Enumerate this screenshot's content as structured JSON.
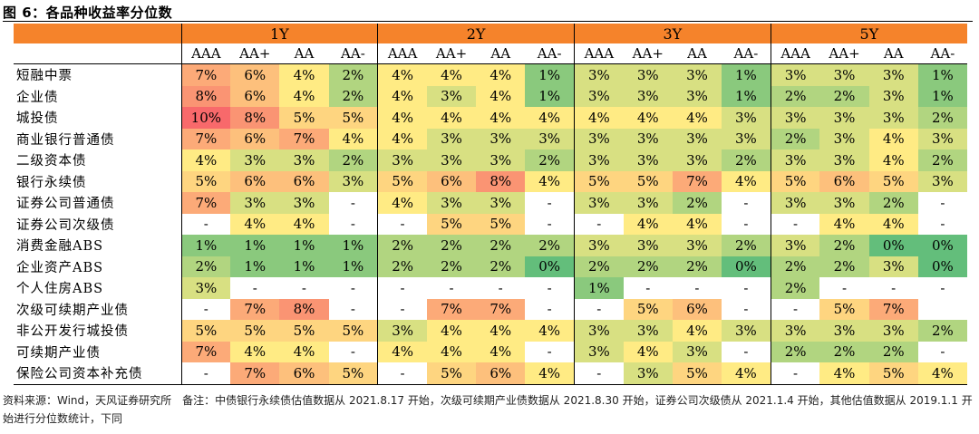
{
  "figure": {
    "title": "图 6：各品种收益率分位数",
    "note": "资料来源：Wind，天风证券研究所　备注：中债银行永续债估值数据从 2021.8.17 开始，次级可续期产业债数据从 2021.8.30 开始，证券公司次级债从 2021.1.4 开始，其他估值数据从 2019.1.1 开始进行分位数统计，下同"
  },
  "chart_data": {
    "type": "heatmap",
    "title": "各品种收益率分位数",
    "tenors": [
      "1Y",
      "2Y",
      "3Y",
      "5Y"
    ],
    "ratings": [
      "AAA",
      "AA+",
      "AA",
      "AA-"
    ],
    "units": "percent",
    "color_scale": {
      "low": "#63be7b",
      "mid": "#ffeb84",
      "high": "#f8696b",
      "missing": "#ffffff"
    },
    "rows": [
      {
        "name": "短融中票",
        "values": [
          7,
          6,
          4,
          2,
          4,
          4,
          4,
          1,
          3,
          3,
          3,
          1,
          3,
          3,
          3,
          1
        ]
      },
      {
        "name": "企业债",
        "values": [
          8,
          6,
          4,
          2,
          4,
          3,
          4,
          1,
          3,
          3,
          3,
          1,
          2,
          2,
          3,
          1
        ]
      },
      {
        "name": "城投债",
        "values": [
          10,
          8,
          5,
          5,
          4,
          4,
          4,
          4,
          4,
          4,
          4,
          3,
          3,
          3,
          3,
          2
        ]
      },
      {
        "name": "商业银行普通债",
        "values": [
          7,
          6,
          7,
          4,
          4,
          3,
          3,
          3,
          3,
          3,
          3,
          3,
          2,
          3,
          4,
          3
        ]
      },
      {
        "name": "二级资本债",
        "values": [
          4,
          3,
          3,
          2,
          3,
          3,
          3,
          2,
          3,
          3,
          3,
          2,
          3,
          3,
          4,
          2
        ]
      },
      {
        "name": "银行永续债",
        "values": [
          5,
          6,
          6,
          3,
          5,
          6,
          8,
          4,
          5,
          5,
          7,
          4,
          5,
          6,
          5,
          3
        ]
      },
      {
        "name": "证券公司普通债",
        "values": [
          7,
          3,
          3,
          null,
          4,
          3,
          3,
          null,
          3,
          3,
          2,
          null,
          3,
          3,
          2,
          null
        ]
      },
      {
        "name": "证券公司次级债",
        "values": [
          null,
          4,
          4,
          null,
          null,
          5,
          5,
          null,
          null,
          4,
          4,
          null,
          null,
          4,
          4,
          null
        ]
      },
      {
        "name": "消费金融ABS",
        "values": [
          1,
          1,
          1,
          1,
          2,
          2,
          2,
          2,
          3,
          3,
          3,
          2,
          3,
          2,
          0,
          0
        ]
      },
      {
        "name": "企业资产ABS",
        "values": [
          2,
          1,
          1,
          1,
          2,
          2,
          2,
          0,
          2,
          2,
          2,
          0,
          2,
          2,
          3,
          0
        ]
      },
      {
        "name": "个人住房ABS",
        "values": [
          3,
          null,
          null,
          null,
          null,
          null,
          null,
          null,
          1,
          null,
          null,
          null,
          2,
          null,
          null,
          null
        ]
      },
      {
        "name": "次级可续期产业债",
        "values": [
          null,
          7,
          8,
          null,
          null,
          7,
          7,
          null,
          null,
          5,
          6,
          null,
          null,
          5,
          7,
          "blank"
        ]
      },
      {
        "name": "非公开发行城投债",
        "values": [
          5,
          5,
          5,
          5,
          3,
          4,
          4,
          4,
          3,
          3,
          4,
          3,
          3,
          3,
          3,
          2
        ]
      },
      {
        "name": "可续期产业债",
        "values": [
          7,
          4,
          4,
          null,
          4,
          4,
          4,
          null,
          3,
          4,
          3,
          null,
          2,
          2,
          2,
          null
        ]
      },
      {
        "name": "保险公司资本补充债",
        "values": [
          null,
          7,
          6,
          5,
          null,
          5,
          6,
          4,
          null,
          3,
          5,
          4,
          null,
          4,
          5,
          4
        ]
      }
    ]
  }
}
